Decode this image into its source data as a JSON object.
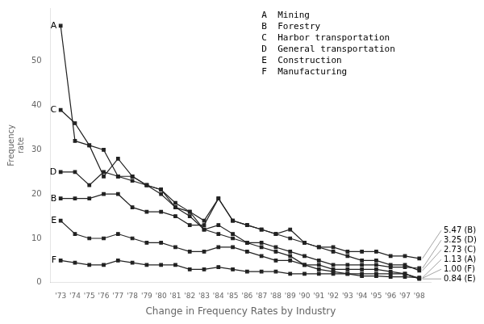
{
  "chart_data": {
    "type": "line",
    "x_label": "Change in Frequency Rates by Industry",
    "y_label": "Frequency\nrate",
    "x": [
      1973,
      1974,
      1975,
      1976,
      1977,
      1978,
      1979,
      1980,
      1981,
      1982,
      1983,
      1984,
      1985,
      1986,
      1987,
      1988,
      1989,
      1990,
      1991,
      1992,
      1993,
      1994,
      1995,
      1996,
      1997,
      1998
    ],
    "xlim": [
      1972.3,
      1998.8
    ],
    "xticks": [
      {
        "value": 1973,
        "label": "'73"
      },
      {
        "value": 1974,
        "label": "'74"
      },
      {
        "value": 1975,
        "label": "'75"
      },
      {
        "value": 1976,
        "label": "'76"
      },
      {
        "value": 1977,
        "label": "'77"
      },
      {
        "value": 1978,
        "label": "'78"
      },
      {
        "value": 1979,
        "label": "'79"
      },
      {
        "value": 1980,
        "label": "'80"
      },
      {
        "value": 1981,
        "label": "'81"
      },
      {
        "value": 1982,
        "label": "'82"
      },
      {
        "value": 1983,
        "label": "'83"
      },
      {
        "value": 1984,
        "label": "'84"
      },
      {
        "value": 1985,
        "label": "'85"
      },
      {
        "value": 1986,
        "label": "'86"
      },
      {
        "value": 1987,
        "label": "'87"
      },
      {
        "value": 1988,
        "label": "'88"
      },
      {
        "value": 1989,
        "label": "'89"
      },
      {
        "value": 1990,
        "label": "'90"
      },
      {
        "value": 1991,
        "label": "'91"
      },
      {
        "value": 1992,
        "label": "'92"
      },
      {
        "value": 1993,
        "label": "'93"
      },
      {
        "value": 1994,
        "label": "'94"
      },
      {
        "value": 1995,
        "label": "'95"
      },
      {
        "value": 1996,
        "label": "'96"
      },
      {
        "value": 1997,
        "label": "'97"
      },
      {
        "value": 1998,
        "label": "'98"
      }
    ],
    "ylim": [
      0,
      62
    ],
    "yticks": [
      0,
      10,
      20,
      30,
      40,
      50
    ],
    "grid": false,
    "annotations": [
      "A  Mining",
      "B  Forestry",
      "C  Harbor transportation",
      "D  General transportation",
      "E  Construction",
      "F  Manufacturing"
    ],
    "series": [
      {
        "name": "A",
        "color": "#222222",
        "marker": "square",
        "values": [
          58,
          32,
          31,
          30,
          24,
          23,
          22,
          20,
          17,
          15,
          12,
          13,
          11,
          9,
          8,
          7,
          6,
          4,
          3,
          2.5,
          2,
          1.5,
          1.5,
          1.3,
          1.3,
          1.13
        ],
        "value_labels": [
          null,
          null,
          null,
          null,
          null,
          null,
          null,
          null,
          null,
          null,
          null,
          null,
          null,
          null,
          null,
          null,
          null,
          null,
          null,
          null,
          null,
          null,
          null,
          null,
          null,
          "1.13 (A)"
        ]
      },
      {
        "name": "B",
        "color": "#222222",
        "marker": "square",
        "values": [
          19,
          19,
          19,
          20,
          20,
          17,
          16,
          16,
          15,
          13,
          13,
          19,
          14,
          13,
          12,
          11,
          10,
          9,
          8,
          8,
          7,
          7,
          7,
          6,
          6,
          5.47
        ],
        "value_labels": [
          null,
          null,
          null,
          null,
          null,
          null,
          null,
          null,
          null,
          null,
          null,
          null,
          null,
          null,
          null,
          null,
          null,
          null,
          null,
          null,
          null,
          null,
          null,
          null,
          null,
          "5.47 (B)"
        ]
      },
      {
        "name": "C",
        "color": "#222222",
        "marker": "square",
        "values": [
          39,
          36,
          31,
          24,
          28,
          24,
          22,
          21,
          17,
          16,
          14,
          19,
          14,
          13,
          12,
          11,
          12,
          9,
          8,
          7,
          6,
          5,
          5,
          4,
          4,
          2.73
        ],
        "value_labels": [
          null,
          null,
          null,
          null,
          null,
          null,
          null,
          null,
          null,
          null,
          null,
          null,
          null,
          null,
          null,
          null,
          null,
          null,
          null,
          null,
          null,
          null,
          null,
          null,
          null,
          "2.73 (C)"
        ]
      },
      {
        "name": "D",
        "color": "#222222",
        "marker": "square",
        "values": [
          25,
          25,
          22,
          25,
          24,
          24,
          22,
          21,
          18,
          16,
          12,
          11,
          10,
          9,
          9,
          8,
          7,
          6,
          5,
          4,
          4,
          4,
          4,
          3.5,
          3.5,
          3.25
        ],
        "value_labels": [
          null,
          null,
          null,
          null,
          null,
          null,
          null,
          null,
          null,
          null,
          null,
          null,
          null,
          null,
          null,
          null,
          null,
          null,
          null,
          null,
          null,
          null,
          null,
          null,
          null,
          "3.25 (D)"
        ]
      },
      {
        "name": "E",
        "color": "#222222",
        "marker": "square",
        "values": [
          14,
          11,
          10,
          10,
          11,
          10,
          9,
          9,
          8,
          7,
          7,
          8,
          8,
          7,
          6,
          5,
          5,
          4,
          4,
          3,
          3,
          3,
          3,
          2.5,
          2,
          0.84
        ],
        "value_labels": [
          null,
          null,
          null,
          null,
          null,
          null,
          null,
          null,
          null,
          null,
          null,
          null,
          null,
          null,
          null,
          null,
          null,
          null,
          null,
          null,
          null,
          null,
          null,
          null,
          null,
          "0.84 (E)"
        ]
      },
      {
        "name": "F",
        "color": "#222222",
        "marker": "square",
        "values": [
          5,
          4.5,
          4,
          4,
          5,
          4.5,
          4,
          4,
          4,
          3,
          3,
          3.5,
          3,
          2.5,
          2.5,
          2.5,
          2,
          2,
          2,
          2,
          2,
          2,
          2,
          2,
          2,
          1.0
        ],
        "value_labels": [
          null,
          null,
          null,
          null,
          null,
          null,
          null,
          null,
          null,
          null,
          null,
          null,
          null,
          null,
          null,
          null,
          null,
          null,
          null,
          null,
          null,
          null,
          null,
          null,
          null,
          "1.00 (F)"
        ]
      }
    ]
  }
}
